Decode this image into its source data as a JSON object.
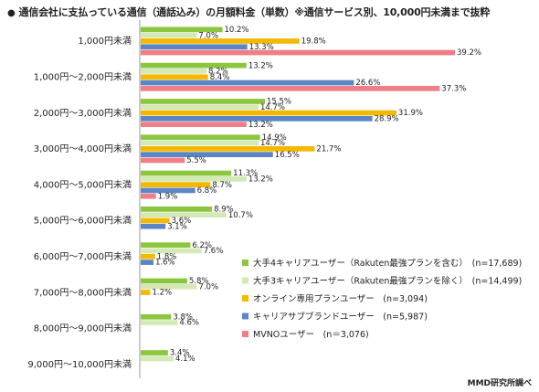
{
  "title_bullet": "●",
  "title": "通信会社に支払っている通信（通話込み）の月額料金（単数）※通信サービス別、10,000円未満まで抜粋",
  "source": "MMD研究所調べ",
  "chart_data": {
    "type": "bar",
    "orientation": "horizontal",
    "title": "通信会社に支払っている通信（通話込み）の月額料金（単数）※通信サービス別、10,000円未満まで抜粋",
    "categories": [
      "1,000円未満",
      "1,000円～2,000円未満",
      "2,000円～3,000円未満",
      "3,000円～4,000円未満",
      "4,000円～5,000円未満",
      "5,000円～6,000円未満",
      "6,000円～7,000円未満",
      "7,000円～8,000円未満",
      "8,000円～9,000円未満",
      "9,000円～10,000円未満"
    ],
    "unit": "%",
    "xlim": [
      0,
      40
    ],
    "grid": false,
    "legend_position": "right",
    "series": [
      {
        "name": "大手4キャリアユーザー（Rakuten最強プランを含む）　(n=17,689)",
        "color": "#8cc63f",
        "values": [
          10.2,
          13.2,
          15.5,
          14.9,
          11.3,
          8.9,
          6.2,
          5.8,
          3.8,
          3.4
        ]
      },
      {
        "name": "大手3キャリアユーザー（Rakuten最強プランを除く）　(n=14,499)",
        "color": "#d3e9b6",
        "values": [
          7.0,
          8.2,
          14.7,
          14.7,
          13.2,
          10.7,
          7.6,
          7.0,
          4.6,
          4.1
        ]
      },
      {
        "name": "オンライン専用プランユーザー　(n=3,094)",
        "color": "#f5b800",
        "values": [
          19.8,
          8.4,
          31.9,
          21.7,
          8.7,
          3.6,
          1.8,
          1.2,
          null,
          null
        ]
      },
      {
        "name": "キャリアサブブランドユーザー　(n=5,987)",
        "color": "#5b86c5",
        "values": [
          13.3,
          26.6,
          28.9,
          16.5,
          6.8,
          3.1,
          1.6,
          null,
          null,
          null
        ]
      },
      {
        "name": "MVNOユーザー　(n＝3,076)",
        "color": "#f07e87",
        "values": [
          39.2,
          37.3,
          13.2,
          5.5,
          1.9,
          null,
          null,
          null,
          null,
          null
        ]
      }
    ]
  }
}
